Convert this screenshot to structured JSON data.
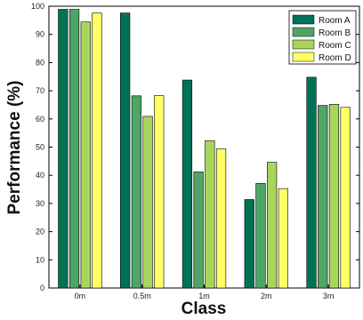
{
  "chart_data": {
    "type": "bar",
    "categories": [
      "0m",
      "0.5m",
      "1m",
      "2m",
      "3m"
    ],
    "series": [
      {
        "name": "Room A",
        "color": "#007355",
        "values": [
          98.9,
          97.6,
          73.8,
          31.4,
          74.8
        ]
      },
      {
        "name": "Room B",
        "color": "#4fa565",
        "values": [
          98.9,
          68.2,
          41.2,
          37.1,
          64.8
        ]
      },
      {
        "name": "Room C",
        "color": "#a8d65a",
        "values": [
          94.4,
          60.9,
          52.3,
          44.6,
          65.2
        ]
      },
      {
        "name": "Room D",
        "color": "#ffff66",
        "values": [
          97.6,
          68.3,
          49.4,
          35.3,
          64.1
        ]
      }
    ],
    "xlabel": "Class",
    "ylabel": "Performance (%)",
    "ylim": [
      0,
      100
    ],
    "yticks": [
      0,
      10,
      20,
      30,
      40,
      50,
      60,
      70,
      80,
      90,
      100
    ],
    "legend_position": "top-right",
    "grid": false
  }
}
